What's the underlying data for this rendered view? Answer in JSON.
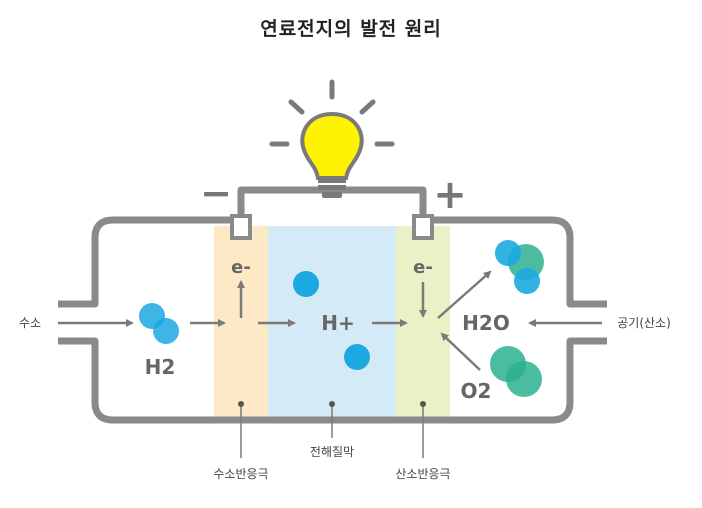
{
  "title": "연료전지의 발전 원리",
  "labels": {
    "hydrogen_in": "수소",
    "air_in": "공기(산소)",
    "anode": "수소반응극",
    "electrolyte": "전해질막",
    "cathode": "산소반응극"
  },
  "molecules": {
    "h2": "H2",
    "h_plus": "H+",
    "h2o": "H2O",
    "o2": "O2",
    "e_anode": "e-",
    "e_cathode": "e-"
  },
  "terminals": {
    "negative": "−",
    "positive": "+"
  },
  "colors": {
    "frame": "#8a8a8a",
    "anode_fill": "#fde9c6",
    "electrolyte_fill": "#d4eaf7",
    "cathode_fill": "#ecf0c6",
    "hydrogen": "#1ca8e0",
    "oxygen": "#2bb08e",
    "bulb": "#fff200"
  }
}
